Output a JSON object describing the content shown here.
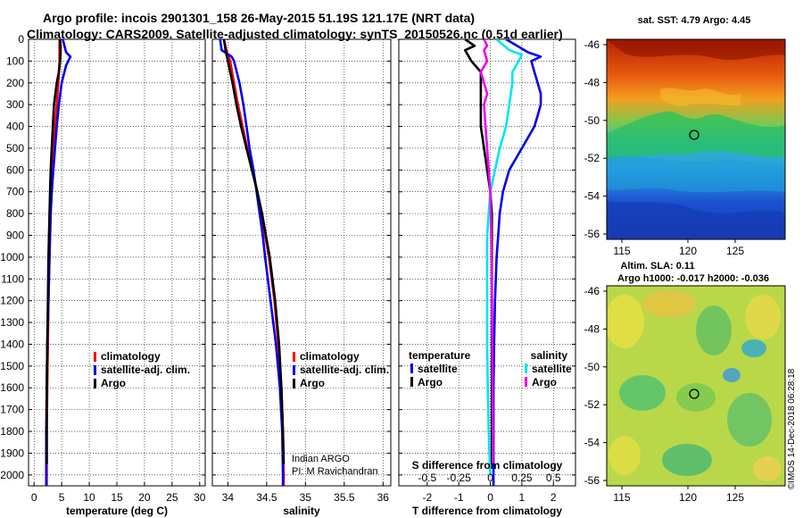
{
  "header": {
    "title_line1": "Argo profile: incois 2901301_158 26-May-2015 51.19S 121.17E (NRT data)",
    "title_line2": "Climatology: CARS2009. Satellite-adjusted climatology: synTS_20150526.nc (0.51d earlier)"
  },
  "chart_data": [
    {
      "type": "line",
      "id": "temperature",
      "xlabel": "temperature (deg C)",
      "ylabel": "",
      "xlim": [
        -1,
        31
      ],
      "ylim": [
        2050,
        0
      ],
      "xticks": [
        0,
        5,
        10,
        15,
        20,
        25,
        30
      ],
      "yticks": [
        0,
        100,
        200,
        300,
        400,
        500,
        600,
        700,
        800,
        900,
        1000,
        1100,
        1200,
        1300,
        1400,
        1500,
        1600,
        1700,
        1800,
        1900,
        2000
      ],
      "grid": true,
      "legend_position": "lower-right",
      "series": [
        {
          "name": "climatology",
          "color": "#ff0000",
          "depth": [
            0,
            50,
            100,
            200,
            300,
            400,
            500,
            600,
            700,
            800,
            900,
            1000,
            1200,
            1400,
            1600,
            1800,
            2000,
            2050
          ],
          "values": [
            4.6,
            4.6,
            4.6,
            4.4,
            4.1,
            3.8,
            3.6,
            3.4,
            3.2,
            3.0,
            2.9,
            2.8,
            2.6,
            2.5,
            2.4,
            2.3,
            2.3,
            2.3
          ]
        },
        {
          "name": "satellite-adj. clim.",
          "color": "#0000ee",
          "depth": [
            0,
            60,
            80,
            120,
            200,
            300,
            400,
            500,
            600,
            700,
            800,
            900,
            1000,
            1200,
            1400,
            1600,
            1800,
            2000,
            2050
          ],
          "values": [
            5.2,
            5.8,
            6.6,
            5.8,
            5.0,
            4.5,
            4.1,
            3.8,
            3.5,
            3.2,
            3.0,
            2.9,
            2.8,
            2.6,
            2.4,
            2.3,
            2.2,
            2.2,
            2.2
          ]
        },
        {
          "name": "Argo",
          "color": "#000000",
          "depth": [
            0,
            50,
            100,
            150,
            200,
            300,
            400,
            500,
            600,
            700,
            800,
            900,
            1000,
            1200,
            1400,
            1600,
            1800,
            1950
          ],
          "values": [
            4.7,
            4.8,
            4.7,
            4.5,
            4.1,
            3.6,
            3.4,
            3.2,
            3.0,
            2.9,
            2.8,
            2.7,
            2.6,
            2.5,
            2.4,
            2.3,
            2.3,
            2.3
          ]
        }
      ],
      "legend": [
        "climatology",
        "satellite-adj. clim.",
        "Argo"
      ]
    },
    {
      "type": "line",
      "id": "salinity",
      "xlabel": "salinity",
      "ylabel": "",
      "xlim": [
        33.8,
        36.1
      ],
      "ylim": [
        2050,
        0
      ],
      "xticks": [
        34,
        34.5,
        35,
        35.5,
        36
      ],
      "grid": true,
      "legend_position": "lower-right",
      "annotation_line1": "Indian ARGO",
      "annotation_line2": "PI: M Ravichandran",
      "series": [
        {
          "name": "climatology",
          "color": "#ff0000",
          "depth": [
            0,
            50,
            100,
            200,
            300,
            400,
            500,
            600,
            700,
            800,
            900,
            1000,
            1200,
            1400,
            1600,
            1800,
            2000,
            2050
          ],
          "values": [
            33.95,
            33.98,
            34.03,
            34.08,
            34.13,
            34.19,
            34.25,
            34.32,
            34.38,
            34.43,
            34.48,
            34.53,
            34.6,
            34.65,
            34.69,
            34.71,
            34.72,
            34.72
          ]
        },
        {
          "name": "satellite-adj. clim.",
          "color": "#0000ee",
          "depth": [
            0,
            50,
            80,
            100,
            200,
            300,
            400,
            500,
            600,
            700,
            800,
            900,
            1000,
            1200,
            1400,
            1600,
            1800,
            2000,
            2050
          ],
          "values": [
            33.9,
            33.92,
            34.05,
            34.08,
            34.15,
            34.2,
            34.24,
            34.28,
            34.33,
            34.37,
            34.41,
            34.45,
            34.48,
            34.55,
            34.62,
            34.67,
            34.7,
            34.71,
            34.71
          ]
        },
        {
          "name": "Argo",
          "color": "#000000",
          "depth": [
            0,
            50,
            100,
            200,
            300,
            400,
            500,
            600,
            700,
            800,
            900,
            1000,
            1200,
            1400,
            1600,
            1800,
            1950
          ],
          "values": [
            33.95,
            33.97,
            34.0,
            34.06,
            34.11,
            34.17,
            34.24,
            34.31,
            34.38,
            34.44,
            34.49,
            34.54,
            34.61,
            34.66,
            34.69,
            34.71,
            34.72
          ]
        }
      ],
      "legend": [
        "climatology",
        "satellite-adj. clim.",
        "Argo"
      ]
    },
    {
      "type": "line",
      "id": "difference",
      "xlabel": "T difference from climatology",
      "xlabel_top": "S difference from climatology",
      "xlim": [
        -2.9,
        2.7
      ],
      "ylim": [
        2050,
        0
      ],
      "xticks": [
        -2,
        -1,
        0,
        1,
        2
      ],
      "xticks_salinity": [
        "-0.5",
        "-0.25",
        "0",
        "0.25",
        "0.5"
      ],
      "xticks_salinity_pos": [
        -2,
        -1,
        0,
        1,
        2
      ],
      "grid": true,
      "legend_titles": [
        "temperature",
        "salinity"
      ],
      "series": [
        {
          "name": "satellite",
          "group": "temperature",
          "color": "#0000ee",
          "depth": [
            0,
            60,
            80,
            100,
            150,
            200,
            250,
            300,
            350,
            400,
            500,
            600,
            700,
            800,
            900,
            1000,
            1200,
            1400,
            1600,
            1800,
            2000,
            2050
          ],
          "values": [
            0.5,
            1.2,
            1.6,
            1.3,
            1.4,
            1.5,
            1.6,
            1.6,
            1.5,
            1.4,
            1.0,
            0.6,
            0.4,
            0.3,
            0.25,
            0.2,
            0.15,
            0.12,
            0.1,
            0.1,
            0.1,
            0.1
          ]
        },
        {
          "name": "Argo",
          "group": "temperature",
          "color": "#000000",
          "depth": [
            0,
            30,
            50,
            100,
            150,
            200,
            300,
            400,
            500,
            600,
            700,
            800,
            900,
            1000,
            1200,
            1400,
            1600,
            1800,
            1950
          ],
          "values": [
            -0.8,
            -0.5,
            -0.8,
            -0.6,
            -0.3,
            -0.3,
            -0.3,
            -0.3,
            -0.2,
            -0.1,
            0.0,
            0.05,
            0.05,
            0.05,
            0.05,
            0.05,
            0.05,
            0.05,
            0.05
          ]
        },
        {
          "name": "satellite",
          "group": "salinity",
          "color": "#00e5ee",
          "depth": [
            0,
            50,
            70,
            100,
            150,
            200,
            300,
            400,
            500,
            600,
            700,
            800,
            900,
            1000,
            1200,
            1400,
            1600,
            1800,
            1900,
            2000
          ],
          "values": [
            0.2,
            0.6,
            1.0,
            0.9,
            0.7,
            0.7,
            0.6,
            0.5,
            0.3,
            0.15,
            0.0,
            -0.05,
            -0.1,
            -0.1,
            -0.1,
            -0.1,
            -0.08,
            -0.05,
            -0.03,
            0.0
          ]
        },
        {
          "name": "Argo",
          "group": "salinity",
          "color": "#ee00ee",
          "depth": [
            0,
            30,
            50,
            100,
            150,
            200,
            250,
            300,
            400,
            500,
            600,
            700,
            800,
            900,
            1000,
            1200,
            1400,
            1600,
            1800,
            1950
          ],
          "values": [
            -0.2,
            -0.1,
            -0.2,
            -0.1,
            -0.3,
            -0.2,
            -0.1,
            -0.2,
            -0.15,
            -0.1,
            -0.05,
            0.0,
            0.02,
            0.03,
            0.04,
            0.05,
            0.06,
            0.07,
            0.08,
            0.08
          ]
        }
      ]
    }
  ],
  "maps": {
    "sst_title": "sat. SST: 4.79 Argo: 4.45",
    "sla_title_line1": "Altim. SLA: 0.11",
    "sla_title_line2": "Argo h1000: -0.017 h2000: -0.036",
    "lat_ticks": [
      "-46",
      "-48",
      "-50",
      "-52",
      "-54",
      "-56"
    ],
    "lon_ticks": [
      "115",
      "120",
      "125"
    ],
    "float_position": {
      "lat": -51.19,
      "lon": 121.17
    },
    "watermark": "©IMOS 14-Dec-2018 06:28:18"
  }
}
